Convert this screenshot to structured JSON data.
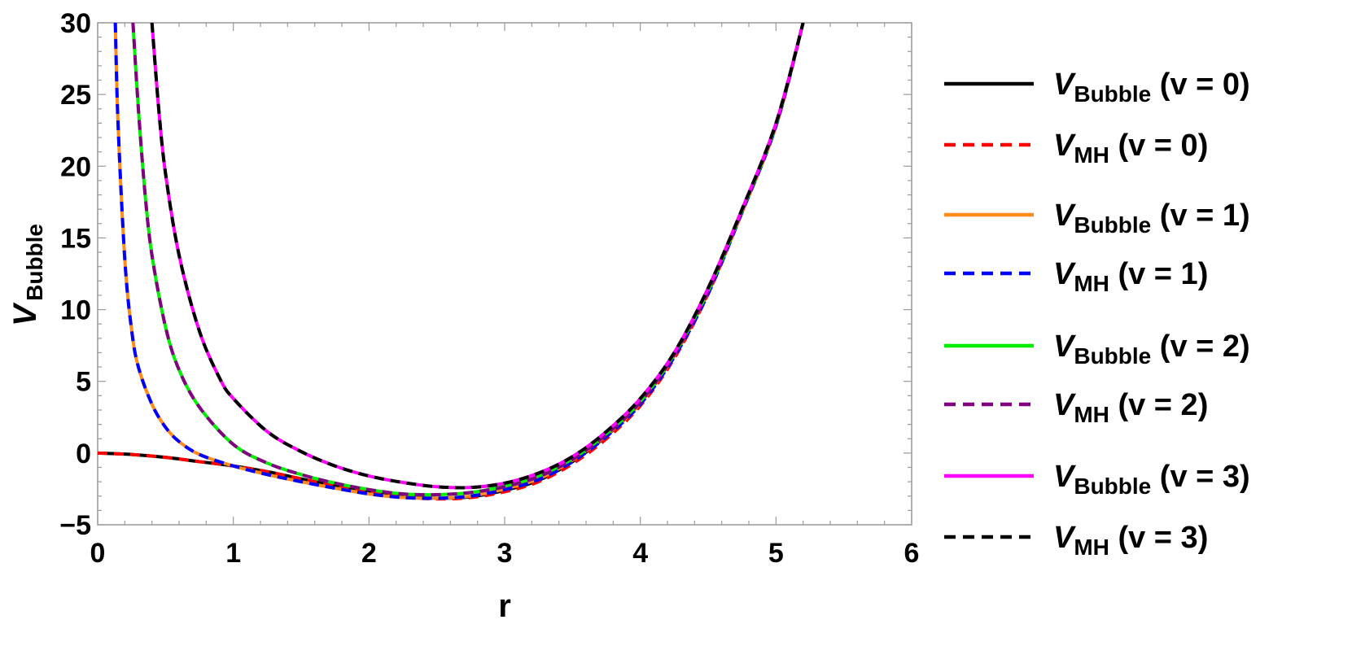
{
  "chart_data": {
    "type": "line",
    "xlabel": "r",
    "ylabel": {
      "main": "V",
      "sub": "Bubble"
    },
    "xlim": [
      0,
      6
    ],
    "ylim": [
      -5,
      30
    ],
    "x_ticks": [
      "0",
      "1",
      "2",
      "3",
      "4",
      "5",
      "6"
    ],
    "y_ticks": [
      "−5",
      "0",
      "5",
      "10",
      "15",
      "20",
      "25",
      "30"
    ],
    "grid": false,
    "legend_position": "right",
    "series": [
      {
        "name": "V_Bubble (ν = 0)",
        "label_main": "V",
        "label_sub": "Bubble",
        "label_tail": " (v = 0)",
        "color": "#000000",
        "dash": "solid",
        "x": [
          0.0,
          0.25,
          0.5,
          0.75,
          1.0,
          1.25,
          1.5,
          1.75,
          2.0,
          2.25,
          2.5,
          2.75,
          3.0,
          3.25,
          3.5,
          3.75,
          4.0,
          4.25,
          4.5,
          4.75,
          5.0,
          5.2
        ],
        "y": [
          0.0,
          -0.1,
          -0.3,
          -0.6,
          -0.9,
          -1.3,
          -1.8,
          -2.3,
          -2.75,
          -3.05,
          -3.15,
          -3.05,
          -2.6,
          -1.9,
          -0.6,
          1.2,
          3.5,
          6.8,
          11.2,
          16.8,
          22.8,
          30.0
        ]
      },
      {
        "name": "V_MH (ν = 0)",
        "label_main": "V",
        "label_sub": "MH",
        "label_tail": " (v = 0)",
        "color": "#ff0000",
        "dash": "dashed",
        "x": [
          0.0,
          0.25,
          0.5,
          0.75,
          1.0,
          1.25,
          1.5,
          1.75,
          2.0,
          2.25,
          2.5,
          2.75,
          3.0,
          3.25,
          3.5,
          3.75,
          4.0,
          4.25,
          4.5,
          4.75,
          5.0,
          5.2
        ],
        "y": [
          0.0,
          -0.1,
          -0.3,
          -0.6,
          -0.9,
          -1.3,
          -1.8,
          -2.3,
          -2.75,
          -3.05,
          -3.2,
          -3.1,
          -2.7,
          -2.0,
          -0.75,
          1.0,
          3.3,
          6.6,
          11.1,
          16.8,
          22.8,
          30.0
        ]
      },
      {
        "name": "V_Bubble (ν = 1)",
        "label_main": "V",
        "label_sub": "Bubble",
        "label_tail": " (v = 1)",
        "color": "#ff8c1a",
        "dash": "solid",
        "x": [
          0.13,
          0.15,
          0.2,
          0.25,
          0.3,
          0.4,
          0.5,
          0.6,
          0.75,
          1.0,
          1.25,
          1.5,
          1.75,
          2.0,
          2.25,
          2.5,
          2.75,
          3.0,
          3.25,
          3.5,
          3.75,
          4.0,
          4.25,
          4.5,
          4.75,
          5.0,
          5.2
        ],
        "y": [
          30.0,
          23.0,
          13.5,
          8.6,
          6.0,
          3.4,
          1.8,
          0.8,
          -0.1,
          -0.9,
          -1.5,
          -2.0,
          -2.45,
          -2.85,
          -3.1,
          -3.15,
          -3.0,
          -2.5,
          -1.8,
          -0.5,
          1.25,
          3.5,
          6.8,
          11.2,
          16.8,
          22.8,
          30.0
        ]
      },
      {
        "name": "V_MH (ν = 1)",
        "label_main": "V",
        "label_sub": "MH",
        "label_tail": " (v = 1)",
        "color": "#0000ff",
        "dash": "dashed",
        "x": [
          0.13,
          0.15,
          0.2,
          0.25,
          0.3,
          0.4,
          0.5,
          0.6,
          0.75,
          1.0,
          1.25,
          1.5,
          1.75,
          2.0,
          2.25,
          2.5,
          2.75,
          3.0,
          3.25,
          3.5,
          3.75,
          4.0,
          4.25,
          4.5,
          4.75,
          5.0,
          5.2
        ],
        "y": [
          30.0,
          23.0,
          13.5,
          8.6,
          6.0,
          3.4,
          1.8,
          0.8,
          -0.1,
          -0.9,
          -1.5,
          -2.0,
          -2.45,
          -2.85,
          -3.1,
          -3.15,
          -3.0,
          -2.55,
          -1.85,
          -0.6,
          1.15,
          3.4,
          6.7,
          11.1,
          16.8,
          22.8,
          30.0
        ]
      },
      {
        "name": "V_Bubble (ν = 2)",
        "label_main": "V",
        "label_sub": "Bubble",
        "label_tail": " (v = 2)",
        "color": "#00ee00",
        "dash": "solid",
        "x": [
          0.26,
          0.3,
          0.35,
          0.4,
          0.5,
          0.6,
          0.75,
          1.0,
          1.25,
          1.5,
          1.75,
          2.0,
          2.25,
          2.5,
          2.75,
          3.0,
          3.25,
          3.5,
          3.75,
          4.0,
          4.25,
          4.5,
          4.75,
          5.0,
          5.2
        ],
        "y": [
          30.0,
          24.0,
          18.0,
          13.8,
          8.8,
          5.8,
          3.2,
          0.6,
          -0.7,
          -1.5,
          -2.1,
          -2.55,
          -2.85,
          -2.9,
          -2.75,
          -2.3,
          -1.6,
          -0.4,
          1.35,
          3.6,
          6.9,
          11.3,
          16.9,
          22.9,
          30.0
        ]
      },
      {
        "name": "V_MH (ν = 2)",
        "label_main": "V",
        "label_sub": "MH",
        "label_tail": " (v = 2)",
        "color": "#800080",
        "dash": "dashed",
        "x": [
          0.26,
          0.3,
          0.35,
          0.4,
          0.5,
          0.6,
          0.75,
          1.0,
          1.25,
          1.5,
          1.75,
          2.0,
          2.25,
          2.5,
          2.75,
          3.0,
          3.25,
          3.5,
          3.75,
          4.0,
          4.25,
          4.5,
          4.75,
          5.0,
          5.2
        ],
        "y": [
          30.0,
          24.0,
          18.0,
          13.8,
          8.8,
          5.8,
          3.2,
          0.6,
          -0.7,
          -1.5,
          -2.1,
          -2.55,
          -2.85,
          -2.9,
          -2.75,
          -2.35,
          -1.65,
          -0.45,
          1.3,
          3.55,
          6.85,
          11.25,
          16.9,
          22.9,
          30.0
        ]
      },
      {
        "name": "V_Bubble (ν = 3)",
        "label_main": "V",
        "label_sub": "Bubble",
        "label_tail": " (v = 3)",
        "color": "#ff00ff",
        "dash": "solid",
        "x": [
          0.4,
          0.45,
          0.5,
          0.6,
          0.75,
          0.9,
          1.0,
          1.25,
          1.5,
          1.75,
          2.0,
          2.25,
          2.5,
          2.75,
          3.0,
          3.25,
          3.5,
          3.75,
          4.0,
          4.25,
          4.5,
          4.75,
          5.0,
          5.2
        ],
        "y": [
          30.0,
          24.0,
          19.5,
          13.8,
          8.5,
          5.2,
          3.8,
          1.5,
          0.1,
          -0.9,
          -1.6,
          -2.05,
          -2.35,
          -2.4,
          -2.1,
          -1.4,
          -0.25,
          1.5,
          3.8,
          7.0,
          11.5,
          17.0,
          23.0,
          30.0
        ]
      },
      {
        "name": "V_MH (ν = 3)",
        "label_main": "V",
        "label_sub": "MH",
        "label_tail": " (v = 3)",
        "color": "#000000",
        "dash": "dashed",
        "x": [
          0.4,
          0.45,
          0.5,
          0.6,
          0.75,
          0.9,
          1.0,
          1.25,
          1.5,
          1.75,
          2.0,
          2.25,
          2.5,
          2.75,
          3.0,
          3.25,
          3.5,
          3.75,
          4.0,
          4.25,
          4.5,
          4.75,
          5.0,
          5.2
        ],
        "y": [
          30.0,
          24.0,
          19.5,
          13.8,
          8.5,
          5.2,
          3.8,
          1.5,
          0.1,
          -0.9,
          -1.6,
          -2.05,
          -2.35,
          -2.4,
          -2.1,
          -1.4,
          -0.25,
          1.5,
          3.8,
          7.0,
          11.5,
          17.0,
          23.0,
          30.0
        ]
      }
    ]
  }
}
